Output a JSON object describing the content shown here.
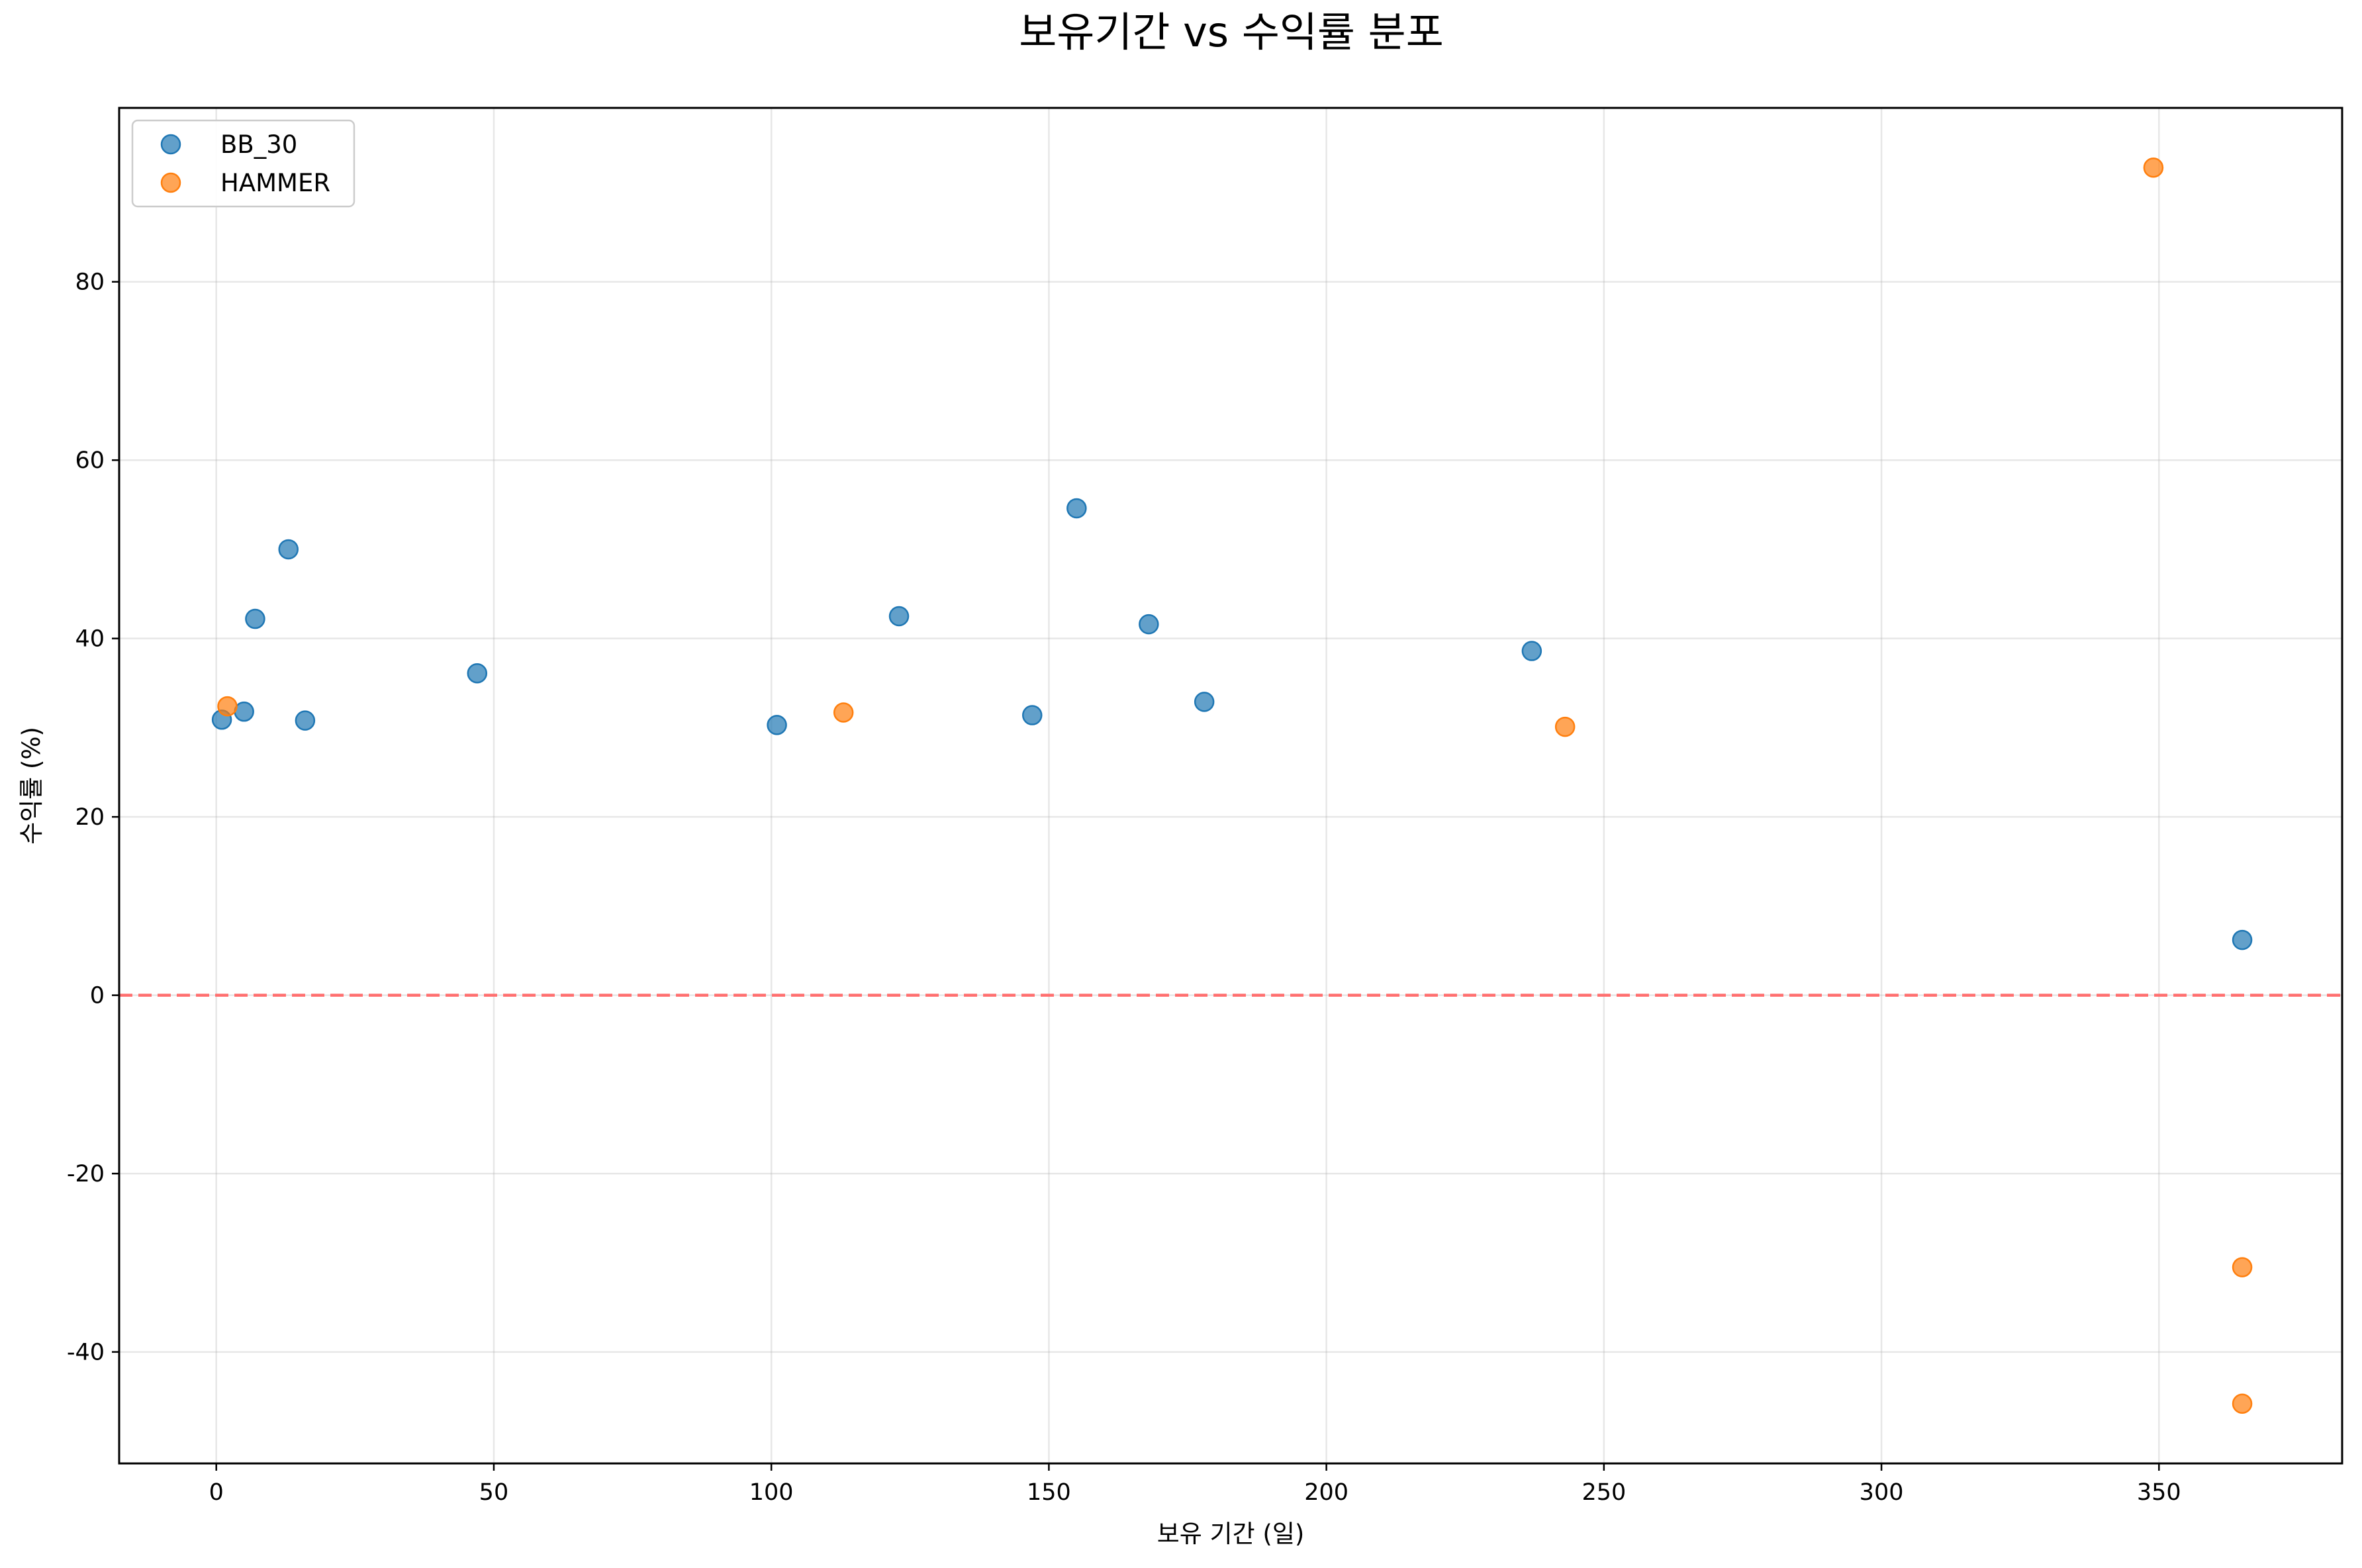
{
  "chart_data": {
    "type": "scatter",
    "title": "보유기간 vs 수익률 분포",
    "xlabel": "보유 기간 (일)",
    "ylabel": "수익률 (%)",
    "xlim": [
      -17.5,
      383
    ],
    "ylim": [
      -52.5,
      99.5
    ],
    "xticks": [
      0,
      50,
      100,
      150,
      200,
      250,
      300,
      350
    ],
    "yticks": [
      -40,
      -20,
      0,
      20,
      40,
      60,
      80
    ],
    "grid": true,
    "legend_position": "top-left",
    "reference_line": {
      "y": 0,
      "style": "dashed",
      "color": "#ff6f6f"
    },
    "series": [
      {
        "name": "BB_30",
        "color": "#1f77b4",
        "points": [
          {
            "x": 1,
            "y": 30.9
          },
          {
            "x": 5,
            "y": 31.8
          },
          {
            "x": 7,
            "y": 42.2
          },
          {
            "x": 13,
            "y": 50.0
          },
          {
            "x": 16,
            "y": 30.8
          },
          {
            "x": 47,
            "y": 36.1
          },
          {
            "x": 101,
            "y": 30.3
          },
          {
            "x": 123,
            "y": 42.5
          },
          {
            "x": 147,
            "y": 31.4
          },
          {
            "x": 155,
            "y": 54.6
          },
          {
            "x": 168,
            "y": 41.6
          },
          {
            "x": 178,
            "y": 32.9
          },
          {
            "x": 237,
            "y": 38.6
          },
          {
            "x": 365,
            "y": 6.2
          }
        ]
      },
      {
        "name": "HAMMER",
        "color": "#ff7f0e",
        "points": [
          {
            "x": 2,
            "y": 32.4
          },
          {
            "x": 113,
            "y": 31.7
          },
          {
            "x": 243,
            "y": 30.1
          },
          {
            "x": 349,
            "y": 92.8
          },
          {
            "x": 365,
            "y": -30.5
          },
          {
            "x": 365,
            "y": -45.8
          }
        ]
      }
    ]
  }
}
